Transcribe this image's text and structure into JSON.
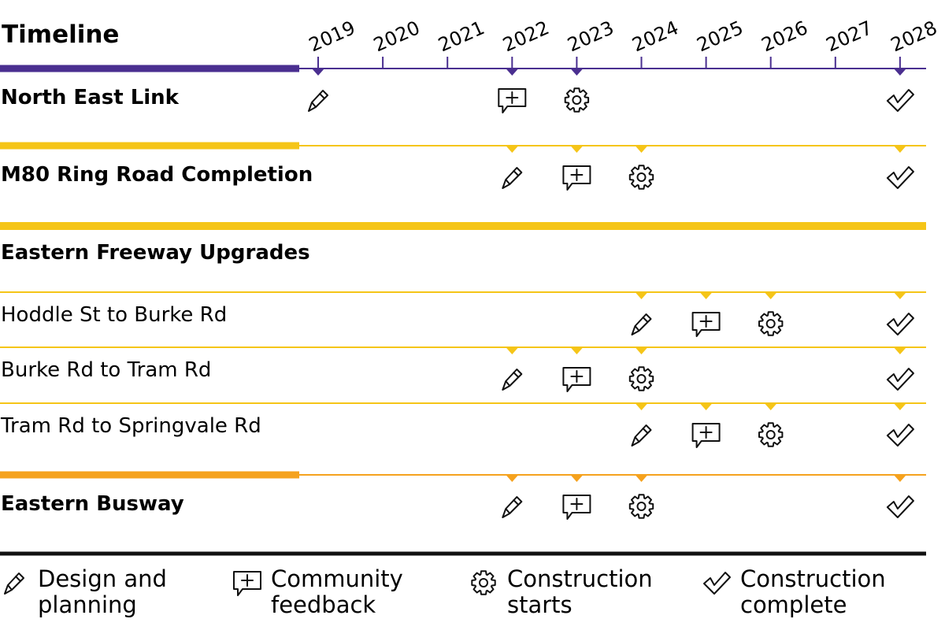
{
  "title": "Timeline",
  "years": [
    "2019",
    "2020",
    "2021",
    "2022",
    "2023",
    "2024",
    "2025",
    "2026",
    "2027",
    "2028"
  ],
  "colors": {
    "purple": "#4a2f90",
    "yellow": "#f5c518",
    "orange": "#f5a21e",
    "black": "#111111"
  },
  "icons": {
    "design": "pencil-icon",
    "feedback": "speech-bubble-plus-icon",
    "construction": "gear-icon",
    "complete": "checkmark-icon"
  },
  "projects": [
    {
      "label": "North East Link",
      "bold": true,
      "color": "purple",
      "milestones": {
        "design": 2019,
        "feedback": 2022,
        "construction": 2023,
        "complete": 2028
      }
    },
    {
      "label": "M80 Ring Road Completion",
      "bold": true,
      "color": "yellow",
      "milestones": {
        "design": 2022,
        "feedback": 2023,
        "construction": 2024,
        "complete": 2028
      }
    },
    {
      "label": "Eastern Freeway Upgrades",
      "bold": true,
      "color": "yellow",
      "group_header": true,
      "milestones": {}
    },
    {
      "label": "Hoddle St to Burke Rd",
      "bold": false,
      "color": "yellow",
      "sub": true,
      "milestones": {
        "design": 2024,
        "feedback": 2025,
        "construction": 2026,
        "complete": 2028
      }
    },
    {
      "label": "Burke Rd to Tram Rd",
      "bold": false,
      "color": "yellow",
      "sub": true,
      "milestones": {
        "design": 2022,
        "feedback": 2023,
        "construction": 2024,
        "complete": 2028
      }
    },
    {
      "label": "Tram Rd to Springvale Rd",
      "bold": false,
      "color": "yellow",
      "sub": true,
      "milestones": {
        "design": 2024,
        "feedback": 2025,
        "construction": 2026,
        "complete": 2028
      }
    },
    {
      "label": "Eastern Busway",
      "bold": true,
      "color": "orange",
      "milestones": {
        "design": 2022,
        "feedback": 2023,
        "construction": 2024,
        "complete": 2028
      }
    }
  ],
  "legend": [
    {
      "key": "design",
      "line1": "Design and",
      "line2": "planning"
    },
    {
      "key": "feedback",
      "line1": "Community",
      "line2": "feedback"
    },
    {
      "key": "construction",
      "line1": "Construction",
      "line2": "starts"
    },
    {
      "key": "complete",
      "line1": "Construction",
      "line2": "complete"
    }
  ]
}
